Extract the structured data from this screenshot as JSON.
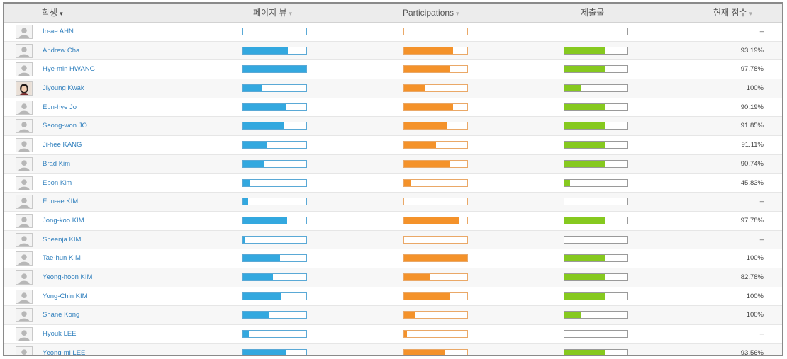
{
  "header": {
    "student": "학생",
    "student_sort": "▾",
    "page_views": "페이지 뷰",
    "participations": "Participations",
    "submissions": "제출물",
    "current_score": "현재 점수",
    "sort_icon": "▾"
  },
  "colors": {
    "page_views": "#33a8df",
    "participations": "#f4922a",
    "submissions": "#86c91f",
    "link": "#2f7fbd"
  },
  "students": [
    {
      "name": "In-ae AHN",
      "avatar": "default-avatar",
      "page_views": 0.0,
      "participations": 0.0,
      "submissions": 0.0,
      "score": "–"
    },
    {
      "name": "Andrew Cha",
      "avatar": "default-avatar",
      "page_views": 0.71,
      "participations": 0.77,
      "submissions": 0.64,
      "score": "93.19%"
    },
    {
      "name": "Hye-min HWANG",
      "avatar": "default-avatar",
      "page_views": 1.0,
      "participations": 0.73,
      "submissions": 0.64,
      "score": "97.78%"
    },
    {
      "name": "Jiyoung Kwak",
      "avatar": "photo-avatar",
      "page_views": 0.29,
      "participations": 0.33,
      "submissions": 0.27,
      "score": "100%"
    },
    {
      "name": "Eun-hye Jo",
      "avatar": "default-avatar",
      "page_views": 0.67,
      "participations": 0.77,
      "submissions": 0.64,
      "score": "90.19%"
    },
    {
      "name": "Seong-won JO",
      "avatar": "default-avatar",
      "page_views": 0.65,
      "participations": 0.69,
      "submissions": 0.64,
      "score": "91.85%"
    },
    {
      "name": "Ji-hee KANG",
      "avatar": "default-avatar",
      "page_views": 0.38,
      "participations": 0.51,
      "submissions": 0.64,
      "score": "91.11%"
    },
    {
      "name": "Brad Kim",
      "avatar": "default-avatar",
      "page_views": 0.33,
      "participations": 0.73,
      "submissions": 0.64,
      "score": "90.74%"
    },
    {
      "name": "Ebon Kim",
      "avatar": "default-avatar",
      "page_views": 0.11,
      "participations": 0.11,
      "submissions": 0.09,
      "score": "45.83%"
    },
    {
      "name": "Eun-ae KIM",
      "avatar": "default-avatar",
      "page_views": 0.08,
      "participations": 0.0,
      "submissions": 0.0,
      "score": "–"
    },
    {
      "name": "Jong-koo KIM",
      "avatar": "default-avatar",
      "page_views": 0.7,
      "participations": 0.86,
      "submissions": 0.64,
      "score": "97.78%"
    },
    {
      "name": "Sheenja KIM",
      "avatar": "default-avatar",
      "page_views": 0.02,
      "participations": 0.0,
      "submissions": 0.0,
      "score": "–"
    },
    {
      "name": "Tae-hun KIM",
      "avatar": "default-avatar",
      "page_views": 0.58,
      "participations": 1.0,
      "submissions": 0.64,
      "score": "100%"
    },
    {
      "name": "Yeong-hoon KIM",
      "avatar": "default-avatar",
      "page_views": 0.47,
      "participations": 0.42,
      "submissions": 0.64,
      "score": "82.78%"
    },
    {
      "name": "Yong-Chin KIM",
      "avatar": "default-avatar",
      "page_views": 0.6,
      "participations": 0.73,
      "submissions": 0.64,
      "score": "100%"
    },
    {
      "name": "Shane Kong",
      "avatar": "default-avatar",
      "page_views": 0.42,
      "participations": 0.18,
      "submissions": 0.27,
      "score": "100%"
    },
    {
      "name": "Hyouk LEE",
      "avatar": "default-avatar",
      "page_views": 0.09,
      "participations": 0.04,
      "submissions": 0.0,
      "score": "–"
    },
    {
      "name": "Yeong-mi LEE",
      "avatar": "default-avatar",
      "page_views": 0.69,
      "participations": 0.64,
      "submissions": 0.64,
      "score": "93.56%"
    }
  ]
}
